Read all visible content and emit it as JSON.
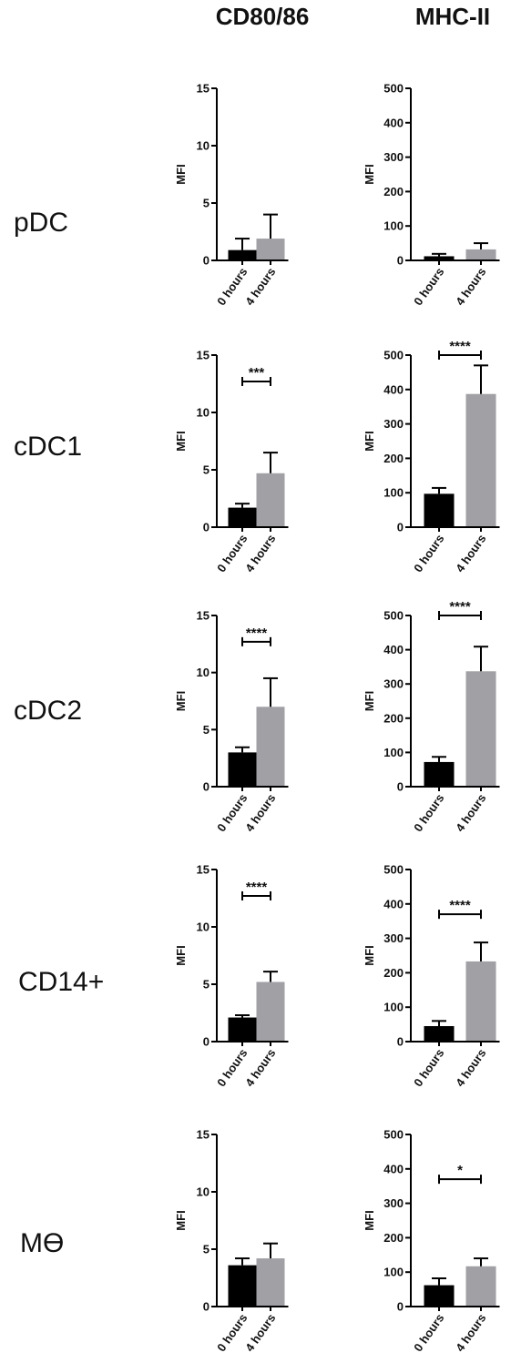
{
  "column_titles": [
    "CD80/86",
    "MHC-II"
  ],
  "row_labels": [
    "pDC",
    "cDC1",
    "cDC2",
    "CD14+",
    "Mϴ"
  ],
  "colors": {
    "bar_0h": "#000000",
    "bar_4h": "#a0a0a5",
    "axis": "#000000"
  },
  "chart_data": [
    {
      "type": "bar",
      "panel": "pDC CD80/86",
      "categories": [
        "0 hours",
        "4 hours"
      ],
      "values": [
        0.9,
        1.9
      ],
      "errors": [
        1.0,
        2.1
      ],
      "ylabel": "MFI",
      "ylim": [
        0,
        15
      ],
      "yticks": [
        0,
        5,
        10,
        15
      ],
      "significance": ""
    },
    {
      "type": "bar",
      "panel": "pDC MHC-II",
      "categories": [
        "0 hours",
        "4 hours"
      ],
      "values": [
        12,
        32
      ],
      "errors": [
        7,
        18
      ],
      "ylabel": "MFI",
      "ylim": [
        0,
        500
      ],
      "yticks": [
        0,
        100,
        200,
        300,
        400,
        500
      ],
      "significance": ""
    },
    {
      "type": "bar",
      "panel": "cDC1 CD80/86",
      "categories": [
        "0 hours",
        "4 hours"
      ],
      "values": [
        1.7,
        4.7
      ],
      "errors": [
        0.35,
        1.8
      ],
      "ylabel": "MFI",
      "ylim": [
        0,
        15
      ],
      "yticks": [
        0,
        5,
        10,
        15
      ],
      "significance": "***",
      "sig_y": 12.7
    },
    {
      "type": "bar",
      "panel": "cDC1 MHC-II",
      "categories": [
        "0 hours",
        "4 hours"
      ],
      "values": [
        97,
        387
      ],
      "errors": [
        17,
        83
      ],
      "ylabel": "MFI",
      "ylim": [
        0,
        500
      ],
      "yticks": [
        0,
        100,
        200,
        300,
        400,
        500
      ],
      "significance": "****",
      "sig_y": 500
    },
    {
      "type": "bar",
      "panel": "cDC2 CD80/86",
      "categories": [
        "0 hours",
        "4 hours"
      ],
      "values": [
        3.0,
        7.0
      ],
      "errors": [
        0.45,
        2.5
      ],
      "ylabel": "MFI",
      "ylim": [
        0,
        15
      ],
      "yticks": [
        0,
        5,
        10,
        15
      ],
      "significance": "****",
      "sig_y": 12.7
    },
    {
      "type": "bar",
      "panel": "cDC2 MHC-II",
      "categories": [
        "0 hours",
        "4 hours"
      ],
      "values": [
        72,
        337
      ],
      "errors": [
        15,
        72
      ],
      "ylabel": "MFI",
      "ylim": [
        0,
        500
      ],
      "yticks": [
        0,
        100,
        200,
        300,
        400,
        500
      ],
      "significance": "****",
      "sig_y": 500
    },
    {
      "type": "bar",
      "panel": "CD14+ CD80/86",
      "categories": [
        "0 hours",
        "4 hours"
      ],
      "values": [
        2.1,
        5.2
      ],
      "errors": [
        0.2,
        0.9
      ],
      "ylabel": "MFI",
      "ylim": [
        0,
        15
      ],
      "yticks": [
        0,
        5,
        10,
        15
      ],
      "significance": "****",
      "sig_y": 12.7
    },
    {
      "type": "bar",
      "panel": "CD14+ MHC-II",
      "categories": [
        "0 hours",
        "4 hours"
      ],
      "values": [
        45,
        233
      ],
      "errors": [
        15,
        55
      ],
      "ylabel": "MFI",
      "ylim": [
        0,
        500
      ],
      "yticks": [
        0,
        100,
        200,
        300,
        400,
        500
      ],
      "significance": "****",
      "sig_y": 370
    },
    {
      "type": "bar",
      "panel": "Mϴ CD80/86",
      "categories": [
        "0 hours",
        "4 hours"
      ],
      "values": [
        3.6,
        4.2
      ],
      "errors": [
        0.6,
        1.3
      ],
      "ylabel": "MFI",
      "ylim": [
        0,
        15
      ],
      "yticks": [
        0,
        5,
        10,
        15
      ],
      "significance": ""
    },
    {
      "type": "bar",
      "panel": "Mϴ MHC-II",
      "categories": [
        "0 hours",
        "4 hours"
      ],
      "values": [
        62,
        117
      ],
      "errors": [
        20,
        23
      ],
      "ylabel": "MFI",
      "ylim": [
        0,
        500
      ],
      "yticks": [
        0,
        100,
        200,
        300,
        400,
        500
      ],
      "significance": "*",
      "sig_y": 370
    }
  ]
}
